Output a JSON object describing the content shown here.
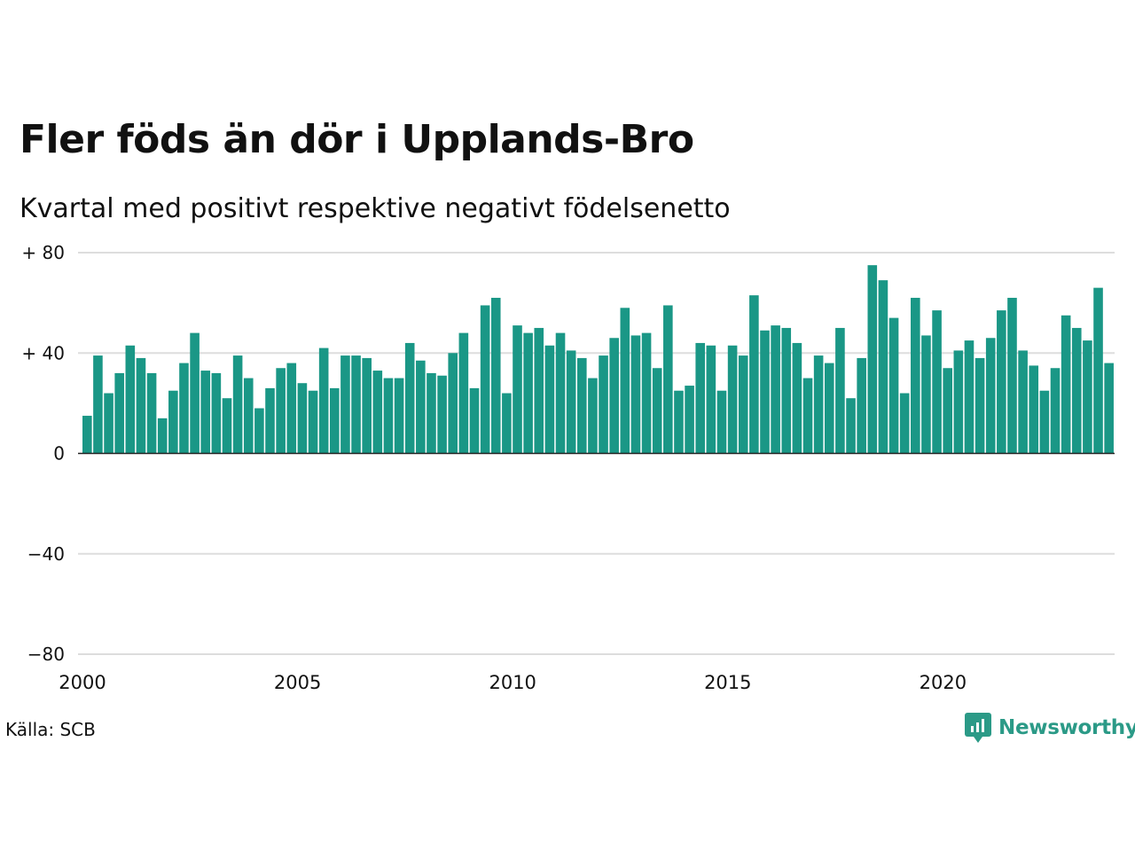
{
  "header": {
    "title": "Fler föds än dör i Upplands-Bro",
    "subtitle": "Kvartal med positivt respektive negativt födelsenetto"
  },
  "footer": {
    "source": "Källa: SCB",
    "brand": "Newsworthy",
    "brand_icon": "newsworthy-logo-icon"
  },
  "colors": {
    "bar": "#1a9786",
    "grid": "#dddddd",
    "zero_line": "#222222",
    "brand": "#2b9a87"
  },
  "chart_data": {
    "type": "bar",
    "ylim": [
      -80,
      80
    ],
    "y_ticks": [
      80,
      40,
      0,
      -40,
      -80
    ],
    "y_tick_labels": [
      "+ 80",
      "+ 40",
      "0",
      "−40",
      "−80"
    ],
    "x_ticks": [
      2000,
      2005,
      2010,
      2015,
      2020
    ],
    "x_tick_labels": [
      "2000",
      "2005",
      "2010",
      "2015",
      "2020"
    ],
    "grid": true,
    "start_year": 2000,
    "series": [
      {
        "values": [
          15,
          39,
          24,
          32,
          43,
          38,
          32,
          14,
          25,
          36,
          48,
          33,
          32,
          22,
          39,
          30,
          18,
          26,
          34,
          36,
          28,
          25,
          42,
          26,
          39,
          39,
          38,
          33,
          30,
          30,
          44,
          37,
          32,
          31,
          40,
          48,
          26,
          59,
          62,
          24,
          51,
          48,
          50,
          43,
          48,
          41,
          38,
          30,
          39,
          46,
          58,
          47,
          48,
          34,
          59,
          25,
          27,
          44,
          43,
          25,
          43,
          39,
          63,
          49,
          51,
          50,
          44,
          30,
          39,
          36,
          50,
          22,
          38,
          75,
          69,
          54,
          24,
          62,
          47,
          57,
          34,
          41,
          45,
          38,
          46,
          57,
          62,
          41,
          35,
          25,
          34,
          55,
          50,
          45,
          66,
          36
        ]
      }
    ]
  }
}
